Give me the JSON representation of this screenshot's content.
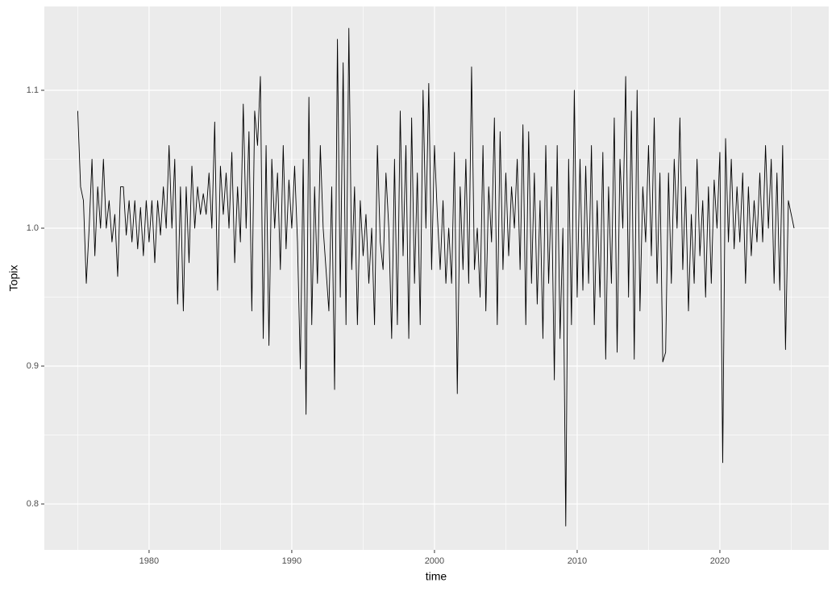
{
  "chart_data": {
    "type": "line",
    "x_label": "time",
    "y_label": "Topix",
    "color": "#000000",
    "grid": true,
    "xlim": [
      1972.66,
      2027.63
    ],
    "ylim": [
      0.7667,
      1.1608
    ],
    "xticks": [
      1980,
      1990,
      2000,
      2010,
      2020
    ],
    "x_minor_ticks": [
      1975,
      1985,
      1995,
      2005,
      2015,
      2025
    ],
    "yticks": [
      0.8,
      0.9,
      {
        "value": 1.0,
        "label": "1.0"
      },
      1.1
    ],
    "y_minor_ticks": [
      0.85,
      0.95,
      1.05
    ],
    "x": [
      1975,
      1975.2,
      1975.4,
      1975.6,
      1975.8,
      1976,
      1976.2,
      1976.4,
      1976.6,
      1976.8,
      1977,
      1977.2,
      1977.4,
      1977.6,
      1977.8,
      1978,
      1978.2,
      1978.4,
      1978.6,
      1978.8,
      1979,
      1979.2,
      1979.4,
      1979.6,
      1979.8,
      1980,
      1980.2,
      1980.4,
      1980.6,
      1980.8,
      1981,
      1981.2,
      1981.4,
      1981.6,
      1981.8,
      1982,
      1982.2,
      1982.4,
      1982.6,
      1982.8,
      1983,
      1983.2,
      1983.4,
      1983.6,
      1983.8,
      1984,
      1984.2,
      1984.4,
      1984.6,
      1984.8,
      1985,
      1985.2,
      1985.4,
      1985.6,
      1985.8,
      1986,
      1986.2,
      1986.4,
      1986.6,
      1986.8,
      1987,
      1987.2,
      1987.4,
      1987.6,
      1987.8,
      1988,
      1988.2,
      1988.4,
      1988.6,
      1988.8,
      1989,
      1989.2,
      1989.4,
      1989.6,
      1989.8,
      1990,
      1990.2,
      1990.4,
      1990.6,
      1990.8,
      1991,
      1991.2,
      1991.4,
      1991.6,
      1991.8,
      1992,
      1992.2,
      1992.4,
      1992.6,
      1992.8,
      1993,
      1993.2,
      1993.4,
      1993.6,
      1993.8,
      1994,
      1994.2,
      1994.4,
      1994.6,
      1994.8,
      1995,
      1995.2,
      1995.4,
      1995.6,
      1995.8,
      1996,
      1996.2,
      1996.4,
      1996.6,
      1996.8,
      1997,
      1997.2,
      1997.4,
      1997.6,
      1997.8,
      1998,
      1998.2,
      1998.4,
      1998.6,
      1998.8,
      1999,
      1999.2,
      1999.4,
      1999.6,
      1999.8,
      2000,
      2000.2,
      2000.4,
      2000.6,
      2000.8,
      2001,
      2001.2,
      2001.4,
      2001.6,
      2001.8,
      2002,
      2002.2,
      2002.4,
      2002.6,
      2002.8,
      2003,
      2003.2,
      2003.4,
      2003.6,
      2003.8,
      2004,
      2004.2,
      2004.4,
      2004.6,
      2004.8,
      2005,
      2005.2,
      2005.4,
      2005.6,
      2005.8,
      2006,
      2006.2,
      2006.4,
      2006.6,
      2006.8,
      2007,
      2007.2,
      2007.4,
      2007.6,
      2007.8,
      2008,
      2008.2,
      2008.4,
      2008.6,
      2008.8,
      2009,
      2009.2,
      2009.4,
      2009.6,
      2009.8,
      2010,
      2010.2,
      2010.4,
      2010.6,
      2010.8,
      2011,
      2011.2,
      2011.4,
      2011.6,
      2011.8,
      2012,
      2012.2,
      2012.4,
      2012.6,
      2012.8,
      2013,
      2013.2,
      2013.4,
      2013.6,
      2013.8,
      2014,
      2014.2,
      2014.4,
      2014.6,
      2014.8,
      2015,
      2015.2,
      2015.4,
      2015.6,
      2015.8,
      2016,
      2016.2,
      2016.4,
      2016.6,
      2016.8,
      2017,
      2017.2,
      2017.4,
      2017.6,
      2017.8,
      2018,
      2018.2,
      2018.4,
      2018.6,
      2018.8,
      2019,
      2019.2,
      2019.4,
      2019.6,
      2019.8,
      2020,
      2020.2,
      2020.4,
      2020.6,
      2020.8,
      2021,
      2021.2,
      2021.4,
      2021.6,
      2021.8,
      2022,
      2022.2,
      2022.4,
      2022.6,
      2022.8,
      2023,
      2023.2,
      2023.4,
      2023.6,
      2023.8,
      2024,
      2024.2,
      2024.4,
      2024.6,
      2024.8,
      2025,
      2025.2
    ],
    "values": [
      1.085,
      1.03,
      1.02,
      0.96,
      1.0,
      1.05,
      0.98,
      1.03,
      1.0,
      1.05,
      1.0,
      1.02,
      0.99,
      1.01,
      0.965,
      1.03,
      1.03,
      0.995,
      1.02,
      0.99,
      1.02,
      0.985,
      1.015,
      0.98,
      1.02,
      0.99,
      1.02,
      0.975,
      1.02,
      0.995,
      1.03,
      1.0,
      1.06,
      1.0,
      1.05,
      0.945,
      1.03,
      0.94,
      1.03,
      0.975,
      1.045,
      1.0,
      1.03,
      1.01,
      1.025,
      1.01,
      1.04,
      1.0,
      1.077,
      0.955,
      1.045,
      1.01,
      1.04,
      1.0,
      1.055,
      0.975,
      1.03,
      0.99,
      1.09,
      1.0,
      1.07,
      0.94,
      1.085,
      1.06,
      1.11,
      0.92,
      1.06,
      0.915,
      1.05,
      1.0,
      1.04,
      0.97,
      1.06,
      0.985,
      1.035,
      1.0,
      1.045,
      0.99,
      0.898,
      1.05,
      0.865,
      1.095,
      0.93,
      1.03,
      0.96,
      1.06,
      1.0,
      0.97,
      0.94,
      1.03,
      0.883,
      1.137,
      0.95,
      1.12,
      0.93,
      1.145,
      0.97,
      1.03,
      0.93,
      1.02,
      0.98,
      1.01,
      0.96,
      1.0,
      0.93,
      1.06,
      0.99,
      0.97,
      1.04,
      1.0,
      0.92,
      1.05,
      0.93,
      1.085,
      0.98,
      1.06,
      0.92,
      1.08,
      0.96,
      1.04,
      0.93,
      1.1,
      1.0,
      1.105,
      0.97,
      1.06,
      1.01,
      0.97,
      1.02,
      0.96,
      1.0,
      0.96,
      1.055,
      0.88,
      1.03,
      0.97,
      1.05,
      0.96,
      1.117,
      0.97,
      1.0,
      0.95,
      1.06,
      0.94,
      1.03,
      0.99,
      1.08,
      0.93,
      1.07,
      0.97,
      1.04,
      0.98,
      1.03,
      1.0,
      1.05,
      0.97,
      1.075,
      0.93,
      1.07,
      0.96,
      1.04,
      0.945,
      1.02,
      0.92,
      1.06,
      0.96,
      1.03,
      0.89,
      1.06,
      0.92,
      1.0,
      0.784,
      1.05,
      0.93,
      1.1,
      0.95,
      1.05,
      0.955,
      1.045,
      0.96,
      1.06,
      0.93,
      1.02,
      0.95,
      1.055,
      0.905,
      1.03,
      0.96,
      1.08,
      0.91,
      1.05,
      1.0,
      1.11,
      0.95,
      1.085,
      0.905,
      1.1,
      0.94,
      1.03,
      0.99,
      1.06,
      0.98,
      1.08,
      0.96,
      1.04,
      0.903,
      0.91,
      1.04,
      0.96,
      1.05,
      1.0,
      1.08,
      0.97,
      1.03,
      0.94,
      1.01,
      0.96,
      1.05,
      0.98,
      1.02,
      0.95,
      1.03,
      0.96,
      1.035,
      1.0,
      1.055,
      0.83,
      1.065,
      0.99,
      1.05,
      0.985,
      1.03,
      0.99,
      1.04,
      0.96,
      1.03,
      0.98,
      1.02,
      0.99,
      1.04,
      0.99,
      1.06,
      1.0,
      1.05,
      0.96,
      1.04,
      0.955,
      1.06,
      0.912,
      1.02,
      1.01,
      1.0
    ]
  }
}
